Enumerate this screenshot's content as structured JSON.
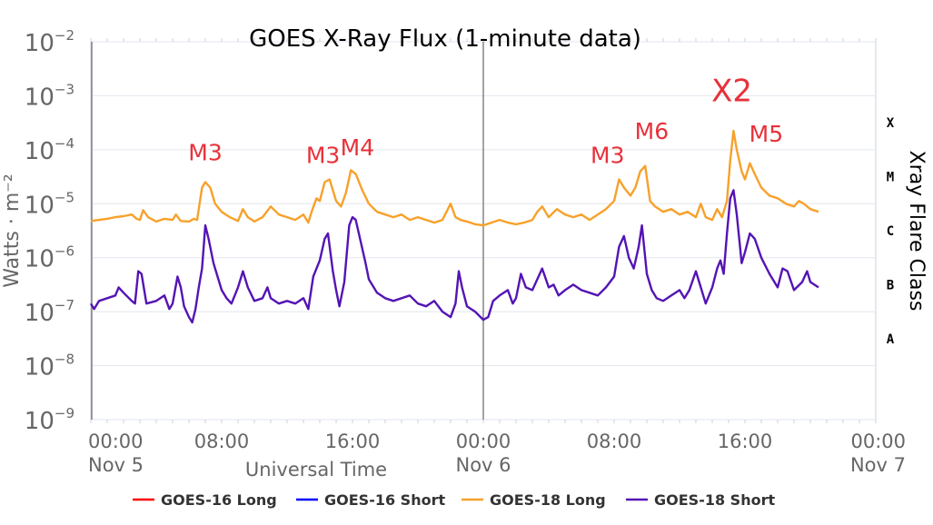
{
  "chart_data": {
    "type": "line",
    "title": "GOES X-Ray Flux (1-minute data)",
    "ylabel": "Watts · m⁻²",
    "xlabel": "Universal Time",
    "y2label": "Xray Flare Class",
    "yscale": "log",
    "ylim": [
      1e-09,
      0.01
    ],
    "xlim": [
      0,
      48
    ],
    "x_unit": "hours since Nov 5 00:00",
    "y_ticks": [
      {
        "base": "10",
        "exp": "−9",
        "value": -9
      },
      {
        "base": "10",
        "exp": "−8",
        "value": -8
      },
      {
        "base": "10",
        "exp": "−7",
        "value": -7
      },
      {
        "base": "10",
        "exp": "−6",
        "value": -6
      },
      {
        "base": "10",
        "exp": "−5",
        "value": -5
      },
      {
        "base": "10",
        "exp": "−4",
        "value": -4
      },
      {
        "base": "10",
        "exp": "−3",
        "value": -3
      },
      {
        "base": "10",
        "exp": "−2",
        "value": -2
      }
    ],
    "x_ticks": [
      {
        "time": "00:00",
        "date": "Nov 5",
        "x": 0
      },
      {
        "time": "08:00",
        "date": "",
        "x": 8
      },
      {
        "time": "16:00",
        "date": "",
        "x": 16
      },
      {
        "time": "00:00",
        "date": "Nov 6",
        "x": 24
      },
      {
        "time": "08:00",
        "date": "",
        "x": 32
      },
      {
        "time": "16:00",
        "date": "",
        "x": 40
      },
      {
        "time": "00:00",
        "date": "Nov 7",
        "x": 48
      }
    ],
    "flare_classes": [
      {
        "label": "X",
        "value": -4
      },
      {
        "label": "M",
        "value": -5
      },
      {
        "label": "C",
        "value": -6
      },
      {
        "label": "B",
        "value": -7
      },
      {
        "label": "A",
        "value": -8
      }
    ],
    "day_lines": [
      0,
      24
    ],
    "annotations": [
      {
        "text": "M3",
        "x": 7.0,
        "value": -4.2
      },
      {
        "text": "M3",
        "x": 14.2,
        "value": -4.25
      },
      {
        "text": "M4",
        "x": 16.3,
        "value": -4.1
      },
      {
        "text": "M3",
        "x": 31.6,
        "value": -4.25
      },
      {
        "text": "M6",
        "x": 34.3,
        "value": -3.8
      },
      {
        "text": "X2",
        "x": 39.2,
        "value": -3.1
      },
      {
        "text": "M5",
        "x": 41.3,
        "value": -3.85
      }
    ],
    "series": [
      {
        "name": "GOES-16 Long",
        "color": "#ff0000",
        "points": []
      },
      {
        "name": "GOES-16 Short",
        "color": "#0000ff",
        "points": []
      },
      {
        "name": "GOES-18 Long",
        "color": "#f7a12a",
        "points": [
          [
            0.0,
            -5.32
          ],
          [
            0.5,
            -5.3
          ],
          [
            1.0,
            -5.28
          ],
          [
            1.5,
            -5.25
          ],
          [
            2.0,
            -5.23
          ],
          [
            2.5,
            -5.2
          ],
          [
            2.8,
            -5.28
          ],
          [
            3.0,
            -5.3
          ],
          [
            3.2,
            -5.12
          ],
          [
            3.5,
            -5.25
          ],
          [
            4.0,
            -5.33
          ],
          [
            4.5,
            -5.28
          ],
          [
            5.0,
            -5.3
          ],
          [
            5.2,
            -5.2
          ],
          [
            5.5,
            -5.32
          ],
          [
            6.0,
            -5.33
          ],
          [
            6.3,
            -5.28
          ],
          [
            6.5,
            -5.3
          ],
          [
            6.8,
            -4.7
          ],
          [
            7.0,
            -4.6
          ],
          [
            7.3,
            -4.7
          ],
          [
            7.6,
            -5.0
          ],
          [
            8.0,
            -5.15
          ],
          [
            8.5,
            -5.25
          ],
          [
            9.0,
            -5.32
          ],
          [
            9.3,
            -5.1
          ],
          [
            9.6,
            -5.25
          ],
          [
            10.0,
            -5.33
          ],
          [
            10.5,
            -5.25
          ],
          [
            11.0,
            -5.05
          ],
          [
            11.5,
            -5.2
          ],
          [
            12.0,
            -5.25
          ],
          [
            12.5,
            -5.3
          ],
          [
            13.0,
            -5.2
          ],
          [
            13.3,
            -5.35
          ],
          [
            13.5,
            -5.15
          ],
          [
            13.8,
            -4.9
          ],
          [
            14.0,
            -4.95
          ],
          [
            14.3,
            -4.6
          ],
          [
            14.6,
            -4.55
          ],
          [
            15.0,
            -4.95
          ],
          [
            15.3,
            -5.05
          ],
          [
            15.6,
            -4.8
          ],
          [
            15.9,
            -4.38
          ],
          [
            16.2,
            -4.45
          ],
          [
            16.6,
            -4.75
          ],
          [
            17.0,
            -5.0
          ],
          [
            17.5,
            -5.15
          ],
          [
            18.0,
            -5.2
          ],
          [
            18.5,
            -5.25
          ],
          [
            19.0,
            -5.2
          ],
          [
            19.5,
            -5.3
          ],
          [
            20.0,
            -5.25
          ],
          [
            20.5,
            -5.3
          ],
          [
            21.0,
            -5.35
          ],
          [
            21.5,
            -5.3
          ],
          [
            22.0,
            -5.0
          ],
          [
            22.3,
            -5.25
          ],
          [
            22.6,
            -5.3
          ],
          [
            23.0,
            -5.33
          ],
          [
            23.5,
            -5.38
          ],
          [
            24.0,
            -5.4
          ],
          [
            24.5,
            -5.35
          ],
          [
            25.0,
            -5.3
          ],
          [
            25.5,
            -5.35
          ],
          [
            26.0,
            -5.38
          ],
          [
            26.5,
            -5.35
          ],
          [
            27.0,
            -5.3
          ],
          [
            27.3,
            -5.15
          ],
          [
            27.6,
            -5.05
          ],
          [
            28.0,
            -5.25
          ],
          [
            28.5,
            -5.1
          ],
          [
            29.0,
            -5.2
          ],
          [
            29.5,
            -5.25
          ],
          [
            30.0,
            -5.2
          ],
          [
            30.5,
            -5.3
          ],
          [
            31.0,
            -5.2
          ],
          [
            31.5,
            -5.1
          ],
          [
            32.0,
            -4.95
          ],
          [
            32.3,
            -4.55
          ],
          [
            32.6,
            -4.7
          ],
          [
            33.0,
            -4.85
          ],
          [
            33.3,
            -4.7
          ],
          [
            33.6,
            -4.4
          ],
          [
            33.9,
            -4.3
          ],
          [
            34.2,
            -4.95
          ],
          [
            34.5,
            -5.05
          ],
          [
            35.0,
            -5.15
          ],
          [
            35.5,
            -5.1
          ],
          [
            36.0,
            -5.2
          ],
          [
            36.5,
            -5.15
          ],
          [
            37.0,
            -5.25
          ],
          [
            37.3,
            -5.0
          ],
          [
            37.6,
            -5.25
          ],
          [
            38.0,
            -5.3
          ],
          [
            38.3,
            -5.1
          ],
          [
            38.6,
            -5.25
          ],
          [
            38.9,
            -4.95
          ],
          [
            39.1,
            -4.2
          ],
          [
            39.3,
            -3.65
          ],
          [
            39.5,
            -4.0
          ],
          [
            39.8,
            -4.4
          ],
          [
            40.0,
            -4.55
          ],
          [
            40.3,
            -4.25
          ],
          [
            40.6,
            -4.45
          ],
          [
            41.0,
            -4.7
          ],
          [
            41.5,
            -4.85
          ],
          [
            42.0,
            -4.9
          ],
          [
            42.5,
            -5.0
          ],
          [
            43.0,
            -5.05
          ],
          [
            43.3,
            -4.95
          ],
          [
            43.6,
            -5.0
          ],
          [
            44.0,
            -5.1
          ],
          [
            44.5,
            -5.15
          ]
        ]
      },
      {
        "name": "GOES-18 Short",
        "color": "#5414b4",
        "points": [
          [
            0.0,
            -6.85
          ],
          [
            0.2,
            -6.95
          ],
          [
            0.5,
            -6.8
          ],
          [
            1.0,
            -6.75
          ],
          [
            1.5,
            -6.7
          ],
          [
            1.7,
            -6.55
          ],
          [
            2.0,
            -6.65
          ],
          [
            2.5,
            -6.8
          ],
          [
            2.7,
            -6.85
          ],
          [
            2.9,
            -6.25
          ],
          [
            3.1,
            -6.3
          ],
          [
            3.4,
            -6.85
          ],
          [
            4.0,
            -6.8
          ],
          [
            4.5,
            -6.7
          ],
          [
            4.8,
            -6.95
          ],
          [
            5.0,
            -6.85
          ],
          [
            5.3,
            -6.35
          ],
          [
            5.5,
            -6.55
          ],
          [
            5.7,
            -6.9
          ],
          [
            6.0,
            -7.1
          ],
          [
            6.2,
            -7.2
          ],
          [
            6.4,
            -6.95
          ],
          [
            6.6,
            -6.55
          ],
          [
            6.8,
            -6.2
          ],
          [
            7.0,
            -5.4
          ],
          [
            7.2,
            -5.65
          ],
          [
            7.5,
            -6.1
          ],
          [
            7.8,
            -6.4
          ],
          [
            8.0,
            -6.6
          ],
          [
            8.3,
            -6.75
          ],
          [
            8.6,
            -6.85
          ],
          [
            9.0,
            -6.55
          ],
          [
            9.3,
            -6.25
          ],
          [
            9.6,
            -6.55
          ],
          [
            10.0,
            -6.8
          ],
          [
            10.5,
            -6.75
          ],
          [
            10.8,
            -6.55
          ],
          [
            11.0,
            -6.75
          ],
          [
            11.5,
            -6.85
          ],
          [
            12.0,
            -6.8
          ],
          [
            12.5,
            -6.85
          ],
          [
            13.0,
            -6.75
          ],
          [
            13.3,
            -6.95
          ],
          [
            13.6,
            -6.35
          ],
          [
            14.0,
            -6.05
          ],
          [
            14.3,
            -5.65
          ],
          [
            14.5,
            -5.55
          ],
          [
            14.8,
            -6.25
          ],
          [
            15.0,
            -6.6
          ],
          [
            15.2,
            -6.9
          ],
          [
            15.5,
            -6.45
          ],
          [
            15.8,
            -5.4
          ],
          [
            16.0,
            -5.25
          ],
          [
            16.2,
            -5.3
          ],
          [
            16.5,
            -5.7
          ],
          [
            16.8,
            -6.1
          ],
          [
            17.0,
            -6.4
          ],
          [
            17.5,
            -6.65
          ],
          [
            18.0,
            -6.75
          ],
          [
            18.5,
            -6.8
          ],
          [
            19.0,
            -6.75
          ],
          [
            19.5,
            -6.7
          ],
          [
            20.0,
            -6.85
          ],
          [
            20.5,
            -6.9
          ],
          [
            21.0,
            -6.8
          ],
          [
            21.5,
            -7.0
          ],
          [
            22.0,
            -7.1
          ],
          [
            22.3,
            -6.85
          ],
          [
            22.5,
            -6.25
          ],
          [
            22.7,
            -6.55
          ],
          [
            23.0,
            -6.9
          ],
          [
            23.5,
            -7.0
          ],
          [
            24.0,
            -7.15
          ],
          [
            24.3,
            -7.1
          ],
          [
            24.6,
            -6.8
          ],
          [
            25.0,
            -6.7
          ],
          [
            25.5,
            -6.6
          ],
          [
            25.8,
            -6.85
          ],
          [
            26.0,
            -6.75
          ],
          [
            26.3,
            -6.3
          ],
          [
            26.6,
            -6.55
          ],
          [
            27.0,
            -6.6
          ],
          [
            27.3,
            -6.4
          ],
          [
            27.6,
            -6.2
          ],
          [
            28.0,
            -6.55
          ],
          [
            28.3,
            -6.5
          ],
          [
            28.6,
            -6.7
          ],
          [
            29.0,
            -6.6
          ],
          [
            29.5,
            -6.5
          ],
          [
            30.0,
            -6.6
          ],
          [
            30.5,
            -6.65
          ],
          [
            31.0,
            -6.7
          ],
          [
            31.5,
            -6.55
          ],
          [
            32.0,
            -6.35
          ],
          [
            32.3,
            -5.8
          ],
          [
            32.6,
            -5.6
          ],
          [
            32.9,
            -6.0
          ],
          [
            33.2,
            -6.2
          ],
          [
            33.5,
            -5.8
          ],
          [
            33.7,
            -5.4
          ],
          [
            34.0,
            -6.3
          ],
          [
            34.3,
            -6.6
          ],
          [
            34.6,
            -6.75
          ],
          [
            35.0,
            -6.8
          ],
          [
            35.5,
            -6.7
          ],
          [
            36.0,
            -6.6
          ],
          [
            36.3,
            -6.75
          ],
          [
            36.6,
            -6.6
          ],
          [
            37.0,
            -6.25
          ],
          [
            37.3,
            -6.55
          ],
          [
            37.6,
            -6.85
          ],
          [
            38.0,
            -6.55
          ],
          [
            38.3,
            -6.2
          ],
          [
            38.5,
            -6.05
          ],
          [
            38.7,
            -6.3
          ],
          [
            38.9,
            -5.55
          ],
          [
            39.1,
            -4.9
          ],
          [
            39.3,
            -4.75
          ],
          [
            39.5,
            -5.2
          ],
          [
            39.8,
            -6.1
          ],
          [
            40.0,
            -5.9
          ],
          [
            40.3,
            -5.55
          ],
          [
            40.6,
            -5.65
          ],
          [
            41.0,
            -6.0
          ],
          [
            41.5,
            -6.3
          ],
          [
            42.0,
            -6.55
          ],
          [
            42.3,
            -6.2
          ],
          [
            42.6,
            -6.25
          ],
          [
            43.0,
            -6.6
          ],
          [
            43.5,
            -6.45
          ],
          [
            43.8,
            -6.25
          ],
          [
            44.0,
            -6.45
          ],
          [
            44.5,
            -6.55
          ]
        ]
      }
    ],
    "legend_position": "bottom"
  }
}
